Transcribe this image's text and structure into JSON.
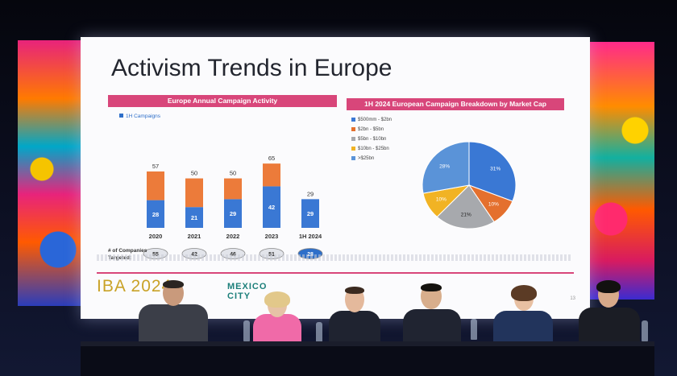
{
  "slide": {
    "title": "Activism Trends in Europe",
    "left_chart_title": "Europe Annual Campaign Activity",
    "right_chart_title": "1H 2024 European Campaign Breakdown by Market Cap",
    "legend_label": "1H Campaigns",
    "companies_label": "# of Companies\nTargeted:",
    "footer_text": "IBA 2024",
    "footer_city": "MEXICO CITY",
    "page_number": "13"
  },
  "chart_data": [
    {
      "type": "bar",
      "title": "Europe Annual Campaign Activity",
      "categories": [
        "2020",
        "2021",
        "2022",
        "2023",
        "1H 2024"
      ],
      "series": [
        {
          "name": "1H Campaigns",
          "values": [
            28,
            21,
            29,
            42,
            29
          ]
        },
        {
          "values": [
            29,
            29,
            21,
            23,
            0
          ]
        }
      ],
      "totals": [
        57,
        50,
        50,
        65,
        29
      ],
      "companies_targeted": [
        55,
        42,
        46,
        51,
        28
      ],
      "colors": [
        "#3a78d4",
        "#ec7b3a"
      ],
      "ylim": [
        0,
        70
      ],
      "grid": false
    },
    {
      "type": "pie",
      "title": "1H 2024 European Campaign Breakdown by Market Cap",
      "labels": [
        "$500mm - $2bn",
        "$2bn - $5bn",
        "$5bn - $10bn",
        "$10bn - $25bn",
        ">$25bn"
      ],
      "values": [
        31,
        10,
        21,
        10,
        28
      ],
      "slice_labels": [
        "31%",
        "10%",
        "21%",
        "10%",
        "28%"
      ],
      "colors": [
        "#3a78d4",
        "#e4702e",
        "#a7a9ad",
        "#f1b324",
        "#5a93d8"
      ],
      "legend_placement": "left"
    }
  ]
}
